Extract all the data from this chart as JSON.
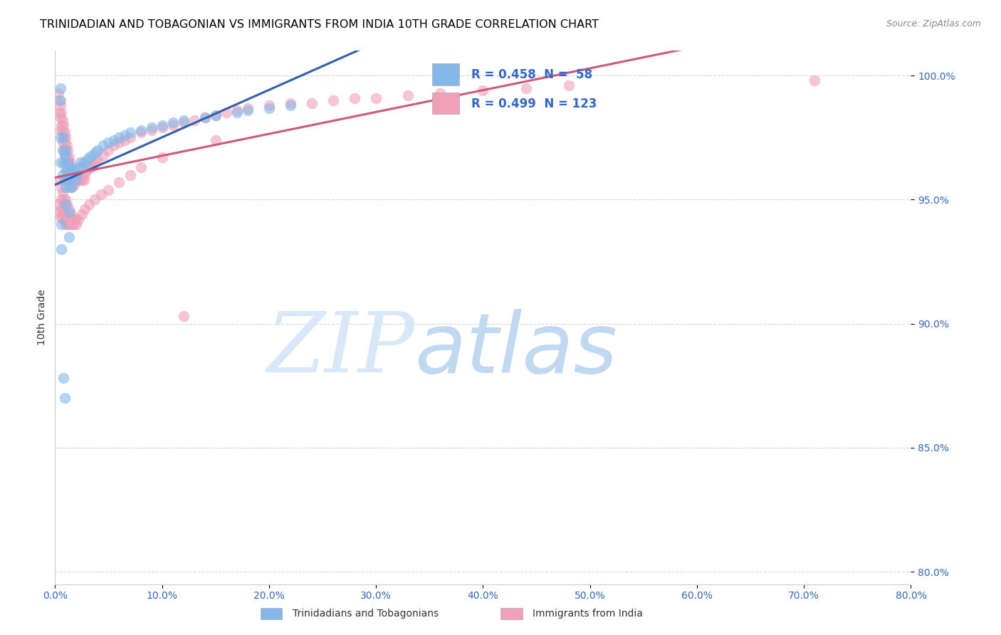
{
  "title": "TRINIDADIAN AND TOBAGONIAN VS IMMIGRANTS FROM INDIA 10TH GRADE CORRELATION CHART",
  "source_text": "Source: ZipAtlas.com",
  "ylabel": "10th Grade",
  "xlim": [
    0.0,
    0.8
  ],
  "ylim": [
    0.795,
    1.01
  ],
  "ytick_values": [
    1.0,
    0.95,
    0.9,
    0.85,
    0.8
  ],
  "ytick_labels": [
    "100.0%",
    "95.0%",
    "90.0%",
    "85.0%",
    "80.0%"
  ],
  "xtick_values": [
    0.0,
    0.1,
    0.2,
    0.3,
    0.4,
    0.5,
    0.6,
    0.7,
    0.8
  ],
  "xtick_labels": [
    "0.0%",
    "10.0%",
    "20.0%",
    "30.0%",
    "40.0%",
    "50.0%",
    "60.0%",
    "70.0%",
    "80.0%"
  ],
  "legend_r1": "R = 0.458",
  "legend_n1": "N =  58",
  "legend_r2": "R = 0.499",
  "legend_n2": "N = 123",
  "legend_label1": "Trinidadians and Tobagonians",
  "legend_label2": "Immigrants from India",
  "color_blue": "#85b8e8",
  "color_pink": "#f0a0b8",
  "color_blue_line": "#3060b0",
  "color_pink_line": "#d05878",
  "color_text_blue": "#3366cc",
  "watermark_zip": "ZIP",
  "watermark_atlas": "atlas",
  "watermark_color": "#d8e8f8",
  "background_color": "#ffffff",
  "grid_color": "#cccccc",
  "title_fontsize": 11.5,
  "axis_label_fontsize": 10,
  "tick_fontsize": 10,
  "blue_x": [
    0.005,
    0.005,
    0.005,
    0.005,
    0.007,
    0.007,
    0.008,
    0.008,
    0.009,
    0.009,
    0.01,
    0.01,
    0.01,
    0.01,
    0.011,
    0.012,
    0.012,
    0.013,
    0.014,
    0.014,
    0.015,
    0.015,
    0.016,
    0.018,
    0.019,
    0.02,
    0.022,
    0.024,
    0.025,
    0.027,
    0.03,
    0.032,
    0.035,
    0.038,
    0.04,
    0.045,
    0.05,
    0.055,
    0.06,
    0.065,
    0.07,
    0.08,
    0.09,
    0.1,
    0.11,
    0.12,
    0.14,
    0.15,
    0.17,
    0.18,
    0.2,
    0.22,
    0.006,
    0.006,
    0.013,
    0.013,
    0.008,
    0.009
  ],
  "blue_y": [
    0.995,
    0.99,
    0.975,
    0.965,
    0.97,
    0.96,
    0.975,
    0.965,
    0.968,
    0.958,
    0.97,
    0.962,
    0.955,
    0.948,
    0.962,
    0.965,
    0.958,
    0.96,
    0.963,
    0.955,
    0.962,
    0.955,
    0.96,
    0.962,
    0.958,
    0.96,
    0.963,
    0.965,
    0.963,
    0.965,
    0.966,
    0.967,
    0.968,
    0.969,
    0.97,
    0.972,
    0.973,
    0.974,
    0.975,
    0.976,
    0.977,
    0.978,
    0.979,
    0.98,
    0.981,
    0.982,
    0.983,
    0.984,
    0.985,
    0.986,
    0.987,
    0.988,
    0.94,
    0.93,
    0.945,
    0.935,
    0.878,
    0.87
  ],
  "pink_x": [
    0.003,
    0.004,
    0.004,
    0.005,
    0.005,
    0.005,
    0.006,
    0.006,
    0.007,
    0.007,
    0.007,
    0.008,
    0.008,
    0.008,
    0.009,
    0.009,
    0.009,
    0.01,
    0.01,
    0.01,
    0.011,
    0.011,
    0.012,
    0.012,
    0.012,
    0.013,
    0.013,
    0.014,
    0.014,
    0.015,
    0.015,
    0.016,
    0.016,
    0.017,
    0.018,
    0.018,
    0.019,
    0.02,
    0.021,
    0.022,
    0.023,
    0.024,
    0.025,
    0.026,
    0.027,
    0.028,
    0.03,
    0.032,
    0.034,
    0.036,
    0.038,
    0.04,
    0.045,
    0.05,
    0.055,
    0.06,
    0.065,
    0.07,
    0.08,
    0.09,
    0.1,
    0.11,
    0.12,
    0.13,
    0.14,
    0.15,
    0.16,
    0.17,
    0.18,
    0.2,
    0.22,
    0.24,
    0.26,
    0.28,
    0.3,
    0.33,
    0.36,
    0.4,
    0.44,
    0.48,
    0.005,
    0.006,
    0.006,
    0.007,
    0.008,
    0.009,
    0.01,
    0.011,
    0.013,
    0.015,
    0.003,
    0.004,
    0.005,
    0.006,
    0.007,
    0.008,
    0.009,
    0.01,
    0.01,
    0.011,
    0.012,
    0.013,
    0.014,
    0.015,
    0.016,
    0.017,
    0.018,
    0.019,
    0.02,
    0.022,
    0.025,
    0.028,
    0.032,
    0.037,
    0.043,
    0.05,
    0.06,
    0.07,
    0.08,
    0.1,
    0.71,
    0.12,
    0.15
  ],
  "pink_y": [
    0.993,
    0.99,
    0.985,
    0.988,
    0.983,
    0.978,
    0.985,
    0.98,
    0.982,
    0.978,
    0.973,
    0.98,
    0.975,
    0.97,
    0.977,
    0.973,
    0.968,
    0.975,
    0.97,
    0.965,
    0.972,
    0.967,
    0.97,
    0.965,
    0.96,
    0.967,
    0.962,
    0.965,
    0.96,
    0.963,
    0.958,
    0.96,
    0.955,
    0.958,
    0.96,
    0.956,
    0.958,
    0.96,
    0.958,
    0.96,
    0.958,
    0.96,
    0.958,
    0.96,
    0.958,
    0.96,
    0.962,
    0.963,
    0.963,
    0.964,
    0.965,
    0.966,
    0.968,
    0.97,
    0.972,
    0.973,
    0.974,
    0.975,
    0.977,
    0.978,
    0.979,
    0.98,
    0.981,
    0.982,
    0.983,
    0.984,
    0.985,
    0.986,
    0.987,
    0.988,
    0.989,
    0.989,
    0.99,
    0.991,
    0.991,
    0.992,
    0.993,
    0.994,
    0.995,
    0.996,
    0.958,
    0.955,
    0.95,
    0.953,
    0.95,
    0.948,
    0.95,
    0.948,
    0.946,
    0.944,
    0.948,
    0.945,
    0.943,
    0.946,
    0.944,
    0.942,
    0.944,
    0.942,
    0.94,
    0.94,
    0.942,
    0.94,
    0.94,
    0.942,
    0.94,
    0.942,
    0.94,
    0.942,
    0.94,
    0.942,
    0.944,
    0.946,
    0.948,
    0.95,
    0.952,
    0.954,
    0.957,
    0.96,
    0.963,
    0.967,
    0.998,
    0.903,
    0.974
  ]
}
